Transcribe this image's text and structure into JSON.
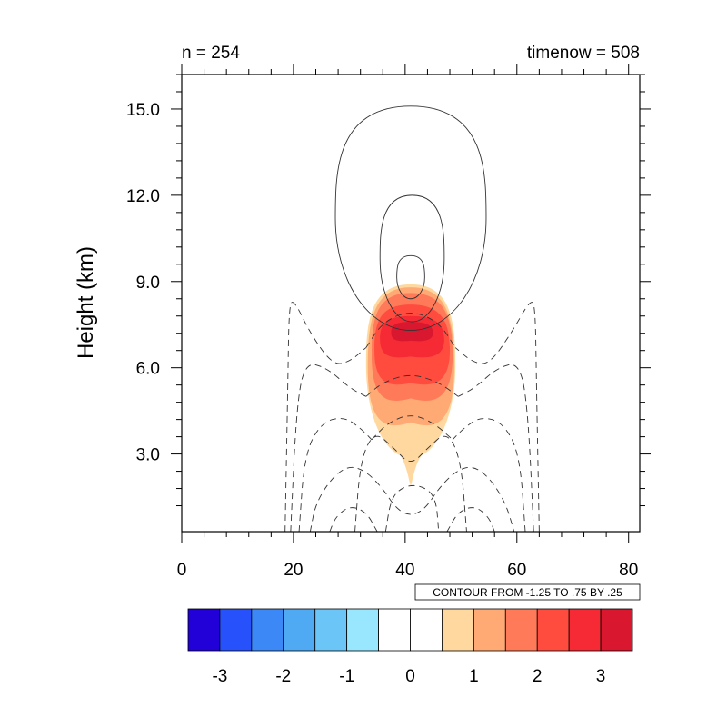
{
  "chart_data": {
    "type": "contour",
    "title_left": "n = 254",
    "title_right": "timenow = 508",
    "ylabel": "Height (km)",
    "xlabel": "",
    "xlim": [
      0,
      82
    ],
    "ylim": [
      0.3,
      16.2
    ],
    "xticks": [
      0,
      20,
      40,
      60,
      80
    ],
    "xtick_labels": [
      "0",
      "20",
      "40",
      "60",
      "80"
    ],
    "yticks": [
      3,
      6,
      9,
      12,
      15
    ],
    "ytick_labels": [
      "3.0",
      "6.0",
      "9.0",
      "12.0",
      "15.0"
    ],
    "contour_info": "CONTOUR FROM -1.25 TO .75 BY .25",
    "filled_field": {
      "center_x": 41,
      "description_levels": [
        {
          "level": 0.5,
          "color": "#ffd8a0",
          "x_range": [
            33.0,
            49.0
          ],
          "y_range": [
            1.9,
            8.9
          ]
        },
        {
          "level": 1.0,
          "color": "#ffaa75",
          "x_range": [
            33.3,
            48.8
          ],
          "y_range": [
            3.8,
            8.8
          ]
        },
        {
          "level": 1.5,
          "color": "#ff7a58",
          "x_range": [
            34.0,
            48.5
          ],
          "y_range": [
            4.7,
            8.6
          ]
        },
        {
          "level": 2.0,
          "color": "#ff4c3f",
          "x_range": [
            34.5,
            48.0
          ],
          "y_range": [
            5.3,
            8.2
          ]
        },
        {
          "level": 2.5,
          "color": "#f52a34",
          "x_range": [
            35.5,
            47.0
          ],
          "y_range": [
            6.3,
            7.8
          ]
        },
        {
          "level": 3.0,
          "color": "#d9182f",
          "x_range": [
            37.5,
            45.0
          ],
          "y_range": [
            6.9,
            7.6
          ]
        }
      ]
    },
    "line_contours": {
      "solid_positive": [
        {
          "x_range": [
            27.5,
            54.5
          ],
          "y_range": [
            7.3,
            15.1
          ]
        },
        {
          "x_range": [
            35.5,
            47.0
          ],
          "y_range": [
            7.6,
            12.0
          ]
        },
        {
          "x_range": [
            38.5,
            43.5
          ],
          "y_range": [
            8.4,
            9.9
          ]
        }
      ],
      "dashed_negative_count": 8
    },
    "colorbar": {
      "colors": [
        "#2200d8",
        "#2752fb",
        "#3d88f7",
        "#4fa9f3",
        "#6bc5f6",
        "#99e6ff",
        "#ffffff",
        "#ffffff",
        "#ffd8a0",
        "#ffaa75",
        "#ff7a58",
        "#ff4c3f",
        "#f52a34",
        "#d9182f"
      ],
      "labels": [
        "-3",
        "-2",
        "-1",
        "0",
        "1",
        "2",
        "3"
      ]
    }
  }
}
